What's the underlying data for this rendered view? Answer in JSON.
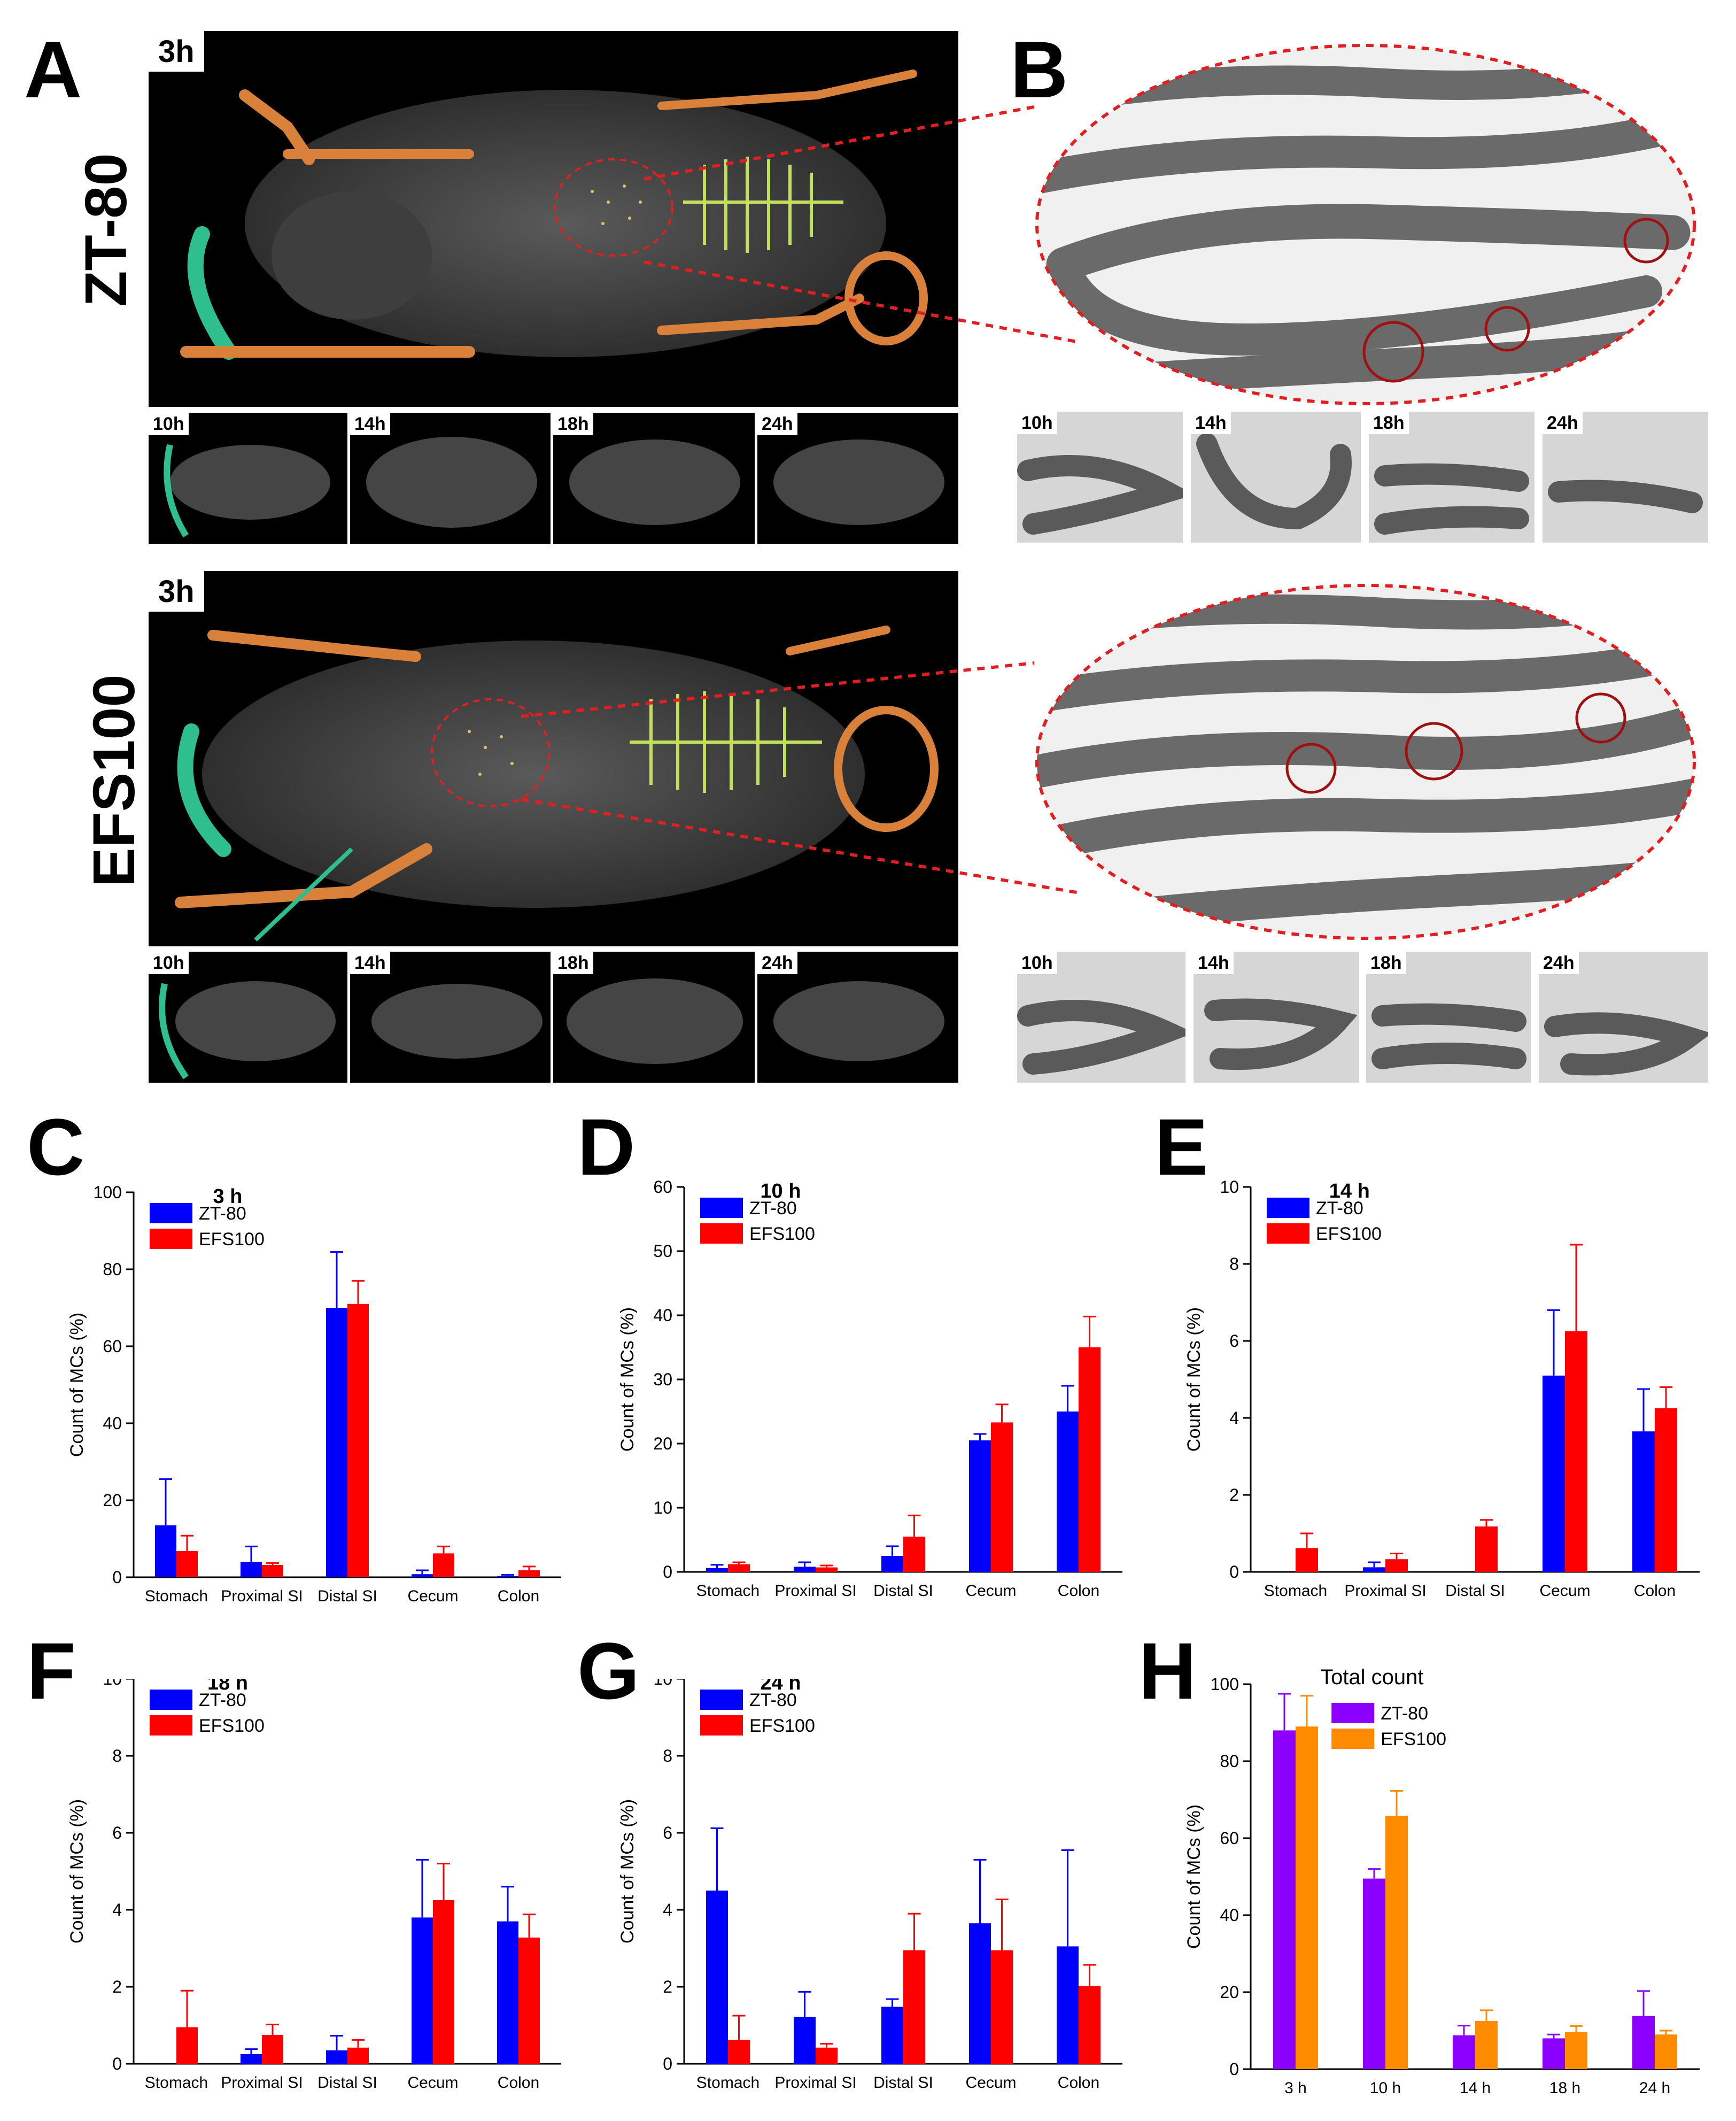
{
  "panel_labels": {
    "A": "A",
    "B": "B",
    "C": "C",
    "D": "D",
    "E": "E",
    "F": "F",
    "G": "G",
    "H": "H"
  },
  "row_labels": {
    "top": "ZT-80",
    "bottom": "EFS100"
  },
  "big_time": "3h",
  "thumb_times": [
    "10h",
    "14h",
    "18h",
    "24h"
  ],
  "colors": {
    "zt80": "#0000ff",
    "efs100": "#ff0000",
    "zt80_total": "#8b00ff",
    "efs100_total": "#ff8c00",
    "guide": "#e02020"
  },
  "chart_data": [
    {
      "id": "C",
      "type": "bar",
      "title": "3 h",
      "ylabel": "Count of MCs (%)",
      "ylim": [
        0,
        100
      ],
      "yticks": [
        0,
        20,
        40,
        60,
        80,
        100
      ],
      "categories": [
        "Stomach",
        "Proximal SI",
        "Distal SI",
        "Cecum",
        "Colon"
      ],
      "legend": "top-left",
      "series": [
        {
          "name": "ZT-80",
          "color": "#0000ff",
          "values": [
            13.5,
            4,
            70,
            0.8,
            0.3
          ],
          "errors": [
            12,
            4,
            14.5,
            1,
            0.3
          ]
        },
        {
          "name": "EFS100",
          "color": "#ff0000",
          "values": [
            6.8,
            3.2,
            71,
            6.2,
            1.8
          ],
          "errors": [
            4,
            0.5,
            6,
            1.8,
            1
          ]
        }
      ]
    },
    {
      "id": "D",
      "type": "bar",
      "title": "10 h",
      "ylabel": "Count of MCs (%)",
      "ylim": [
        0,
        60
      ],
      "yticks": [
        0,
        10,
        20,
        30,
        40,
        50,
        60
      ],
      "categories": [
        "Stomach",
        "Proximal SI",
        "Distal SI",
        "Cecum",
        "Colon"
      ],
      "legend": "top-left",
      "series": [
        {
          "name": "ZT-80",
          "color": "#0000ff",
          "values": [
            0.6,
            0.8,
            2.5,
            20.5,
            25
          ],
          "errors": [
            0.5,
            0.7,
            1.5,
            1,
            4
          ]
        },
        {
          "name": "EFS100",
          "color": "#ff0000",
          "values": [
            1.2,
            0.7,
            5.5,
            23.3,
            35
          ],
          "errors": [
            0.3,
            0.3,
            3.3,
            2.8,
            4.8
          ]
        }
      ]
    },
    {
      "id": "E",
      "type": "bar",
      "title": "14 h",
      "ylabel": "Count of MCs (%)",
      "ylim": [
        0,
        10
      ],
      "yticks": [
        0,
        2,
        4,
        6,
        8,
        10
      ],
      "categories": [
        "Stomach",
        "Proximal SI",
        "Distal SI",
        "Cecum",
        "Colon"
      ],
      "legend": "top-left",
      "series": [
        {
          "name": "ZT-80",
          "color": "#0000ff",
          "values": [
            0,
            0.12,
            0,
            5.1,
            3.65
          ],
          "errors": [
            0,
            0.13,
            0,
            1.7,
            1.1
          ]
        },
        {
          "name": "EFS100",
          "color": "#ff0000",
          "values": [
            0.62,
            0.33,
            1.18,
            6.25,
            4.25
          ],
          "errors": [
            0.38,
            0.15,
            0.17,
            2.25,
            0.55
          ]
        }
      ]
    },
    {
      "id": "F",
      "type": "bar",
      "title": "18 h",
      "ylabel": "Count of MCs (%)",
      "ylim": [
        0,
        10
      ],
      "yticks": [
        0,
        2,
        4,
        6,
        8,
        10
      ],
      "categories": [
        "Stomach",
        "Proximal SI",
        "Distal SI",
        "Cecum",
        "Colon"
      ],
      "legend": "top-left",
      "series": [
        {
          "name": "ZT-80",
          "color": "#0000ff",
          "values": [
            0,
            0.25,
            0.35,
            3.8,
            3.7
          ],
          "errors": [
            0,
            0.13,
            0.38,
            1.5,
            0.9
          ]
        },
        {
          "name": "EFS100",
          "color": "#ff0000",
          "values": [
            0.95,
            0.75,
            0.42,
            4.25,
            3.28
          ],
          "errors": [
            0.95,
            0.27,
            0.2,
            0.95,
            0.6
          ]
        }
      ]
    },
    {
      "id": "G",
      "type": "bar",
      "title": "24 h",
      "ylabel": "Count of MCs (%)",
      "ylim": [
        0,
        10
      ],
      "yticks": [
        0,
        2,
        4,
        6,
        8,
        10
      ],
      "categories": [
        "Stomach",
        "Proximal SI",
        "Distal SI",
        "Cecum",
        "Colon"
      ],
      "legend": "top-left",
      "series": [
        {
          "name": "ZT-80",
          "color": "#0000ff",
          "values": [
            4.5,
            1.22,
            1.48,
            3.65,
            3.05
          ],
          "errors": [
            1.62,
            0.65,
            0.2,
            1.65,
            2.5
          ]
        },
        {
          "name": "EFS100",
          "color": "#ff0000",
          "values": [
            0.62,
            0.42,
            2.95,
            2.95,
            2.02
          ],
          "errors": [
            0.63,
            0.1,
            0.95,
            1.32,
            0.55
          ]
        }
      ]
    },
    {
      "id": "H",
      "type": "bar",
      "title": "Total count",
      "ylabel": "Count of MCs (%)",
      "ylim": [
        0,
        100
      ],
      "yticks": [
        0,
        20,
        40,
        60,
        80,
        100
      ],
      "categories": [
        "3 h",
        "10 h",
        "14 h",
        "18 h",
        "24 h"
      ],
      "legend": "top-center",
      "series": [
        {
          "name": "ZT-80",
          "color": "#8b00ff",
          "values": [
            88,
            49.5,
            8.8,
            8,
            13.8
          ],
          "errors": [
            9.5,
            2.5,
            2.5,
            1,
            6.5
          ]
        },
        {
          "name": "EFS100",
          "color": "#ff8c00",
          "values": [
            89,
            65.8,
            12.5,
            9.7,
            9
          ],
          "errors": [
            8,
            6.5,
            2.8,
            1.5,
            1
          ]
        }
      ]
    }
  ]
}
